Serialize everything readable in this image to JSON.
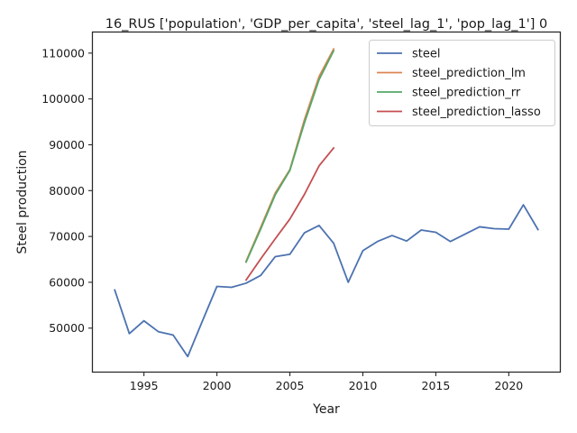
{
  "chart_data": {
    "type": "line",
    "title": "16_RUS ['population', 'GDP_per_capita', 'steel_lag_1', 'pop_lag_1'] 0",
    "xlabel": "Year",
    "ylabel": "Steel production",
    "xlim": [
      1991.5,
      2023.5
    ],
    "ylim": [
      40500,
      114500
    ],
    "xticks": [
      1995,
      2000,
      2005,
      2010,
      2015,
      2020
    ],
    "yticks": [
      50000,
      60000,
      70000,
      80000,
      90000,
      100000,
      110000
    ],
    "grid": false,
    "legend_position": "top-right",
    "series": [
      {
        "name": "steel",
        "color": "#4c72b0",
        "x": [
          1993,
          1994,
          1995,
          1996,
          1997,
          1998,
          1999,
          2000,
          2001,
          2002,
          2003,
          2004,
          2005,
          2006,
          2007,
          2008,
          2009,
          2010,
          2011,
          2012,
          2013,
          2014,
          2015,
          2016,
          2017,
          2018,
          2019,
          2020,
          2021,
          2022
        ],
        "y": [
          58300,
          48800,
          51600,
          49200,
          48500,
          43800,
          51500,
          59100,
          58900,
          59800,
          61500,
          65600,
          66100,
          70800,
          72400,
          68500,
          60000,
          66900,
          68900,
          70200,
          69000,
          71400,
          70900,
          68900,
          70500,
          72100,
          71700,
          71600,
          76900,
          71500
        ]
      },
      {
        "name": "steel_prediction_lm",
        "color": "#dd8452",
        "x": [
          2002,
          2003,
          2004,
          2005,
          2006,
          2007,
          2008
        ],
        "y": [
          64600,
          72000,
          79500,
          84600,
          95500,
          104900,
          110900
        ]
      },
      {
        "name": "steel_prediction_rr",
        "color": "#55a868",
        "x": [
          2002,
          2003,
          2004,
          2005,
          2006,
          2007,
          2008
        ],
        "y": [
          64400,
          71600,
          79100,
          84400,
          94800,
          104200,
          110500
        ]
      },
      {
        "name": "steel_prediction_lasso",
        "color": "#c44e52",
        "x": [
          2002,
          2003,
          2004,
          2005,
          2006,
          2007,
          2008
        ],
        "y": [
          60500,
          65100,
          69500,
          73800,
          79200,
          85400,
          89300
        ]
      }
    ]
  }
}
